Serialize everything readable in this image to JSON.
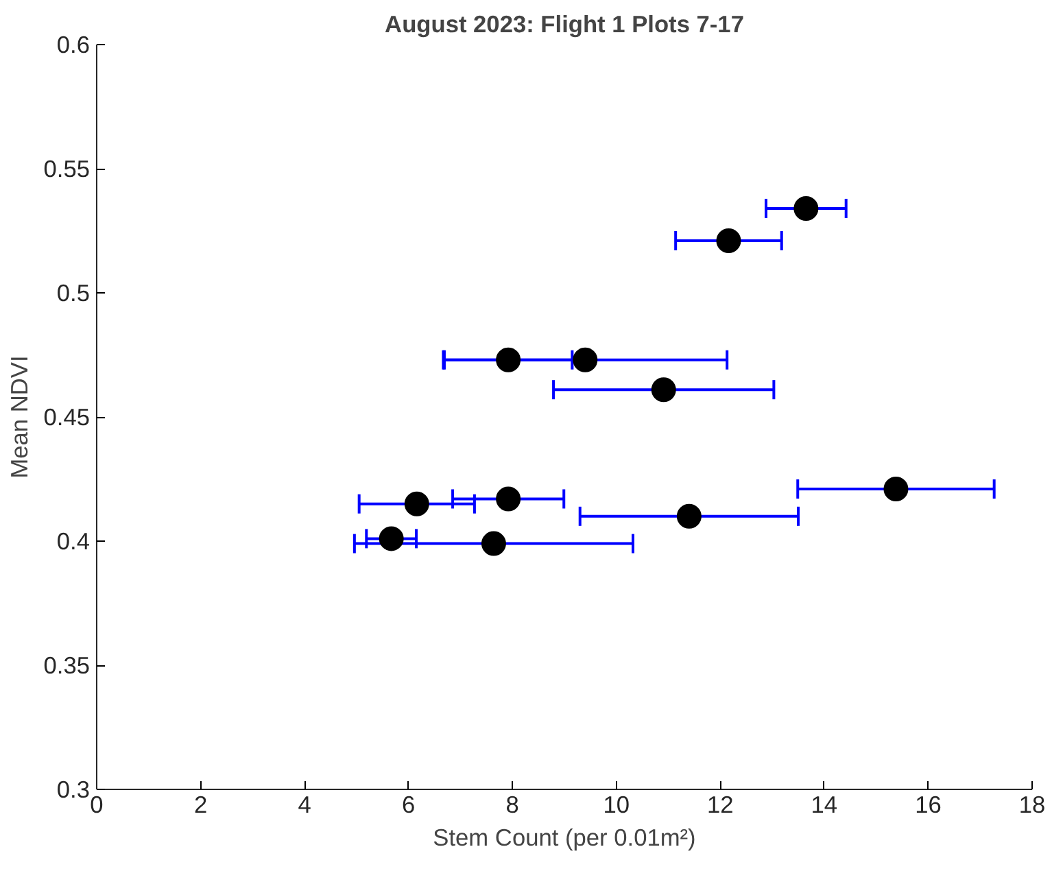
{
  "chart_data": {
    "type": "scatter",
    "title": "August 2023: Flight 1 Plots 7-17",
    "xlabel": "Stem Count (per 0.01m²)",
    "ylabel": "Mean NDVI",
    "series": [
      {
        "color": "#000000",
        "x": [
          13.65,
          12.16,
          7.92,
          9.4,
          10.91,
          15.38,
          7.92,
          6.16,
          11.4,
          5.67,
          7.64
        ],
        "values": [
          0.534,
          0.521,
          0.473,
          0.473,
          0.461,
          0.421,
          0.417,
          0.415,
          0.41,
          0.401,
          0.399
        ],
        "xerrors": [
          0.77,
          1.02,
          1.23,
          2.73,
          2.12,
          1.89,
          1.07,
          1.11,
          2.1,
          0.48,
          2.68
        ]
      }
    ],
    "xlim": [
      0,
      18
    ],
    "ylim": [
      0.3,
      0.6
    ],
    "xticks": [
      0,
      2,
      4,
      6,
      8,
      10,
      12,
      14,
      16,
      18
    ],
    "yticks": [
      0.3,
      0.35,
      0.4,
      0.45,
      0.5,
      0.55,
      0.6
    ],
    "marker": "circle",
    "grid": false
  }
}
